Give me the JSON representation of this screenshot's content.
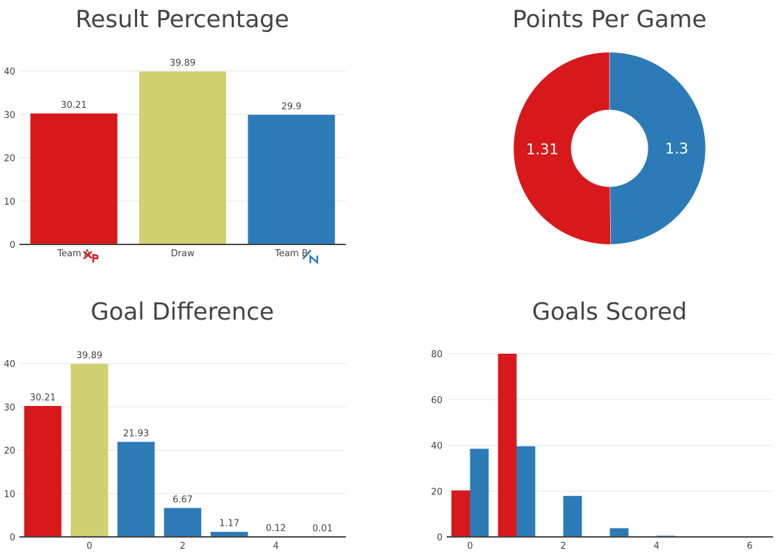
{
  "colors": {
    "red": "#d7191c",
    "khaki": "#d1d070",
    "blue": "#2c7bb6",
    "axis": "#444444",
    "grid": "#e6e6e6"
  },
  "chart_data": [
    {
      "id": "result",
      "type": "bar",
      "title": "Result Percentage",
      "categories": [
        "Team A",
        "Draw",
        "Team B"
      ],
      "values": [
        30.21,
        39.89,
        29.9
      ],
      "labels": [
        "30.21",
        "39.89",
        "29.9"
      ],
      "colors": [
        "red",
        "khaki",
        "blue"
      ],
      "ylim": [
        0,
        40
      ],
      "yticks": [
        0,
        10,
        20,
        30,
        40
      ],
      "grid": true
    },
    {
      "id": "ppg",
      "type": "pie",
      "title": "Points Per Game",
      "values": [
        1.31,
        1.3
      ],
      "labels": [
        "1.31",
        "1.3"
      ],
      "colors": [
        "red",
        "blue"
      ],
      "hole": 0.4
    },
    {
      "id": "gd",
      "type": "bar",
      "title": "Goal Difference",
      "x": [
        -1,
        0,
        1,
        2,
        3,
        4,
        5
      ],
      "values": [
        30.21,
        39.89,
        21.93,
        6.67,
        1.17,
        0.12,
        0.01
      ],
      "labels": [
        "30.21",
        "39.89",
        "21.93",
        "6.67",
        "1.17",
        "0.12",
        "0.01"
      ],
      "colors": [
        "red",
        "khaki",
        "blue",
        "blue",
        "blue",
        "blue",
        "blue"
      ],
      "xticks": [
        0,
        2,
        4
      ],
      "ylim": [
        0,
        40
      ],
      "yticks": [
        0,
        10,
        20,
        30,
        40
      ],
      "grid": true
    },
    {
      "id": "gs",
      "type": "bar",
      "title": "Goals Scored",
      "x": [
        0,
        1,
        2,
        3,
        4,
        5,
        6
      ],
      "series": [
        {
          "color": "red",
          "values": [
            20.3,
            80.0,
            0,
            0,
            0,
            0,
            0
          ]
        },
        {
          "color": "blue",
          "values": [
            38.5,
            39.6,
            17.9,
            3.8,
            0.5,
            0.1,
            0.05
          ]
        }
      ],
      "xticks": [
        0,
        2,
        4,
        6
      ],
      "ylim": [
        0,
        80
      ],
      "yticks": [
        0,
        20,
        40,
        60,
        80
      ],
      "grid": true
    }
  ]
}
